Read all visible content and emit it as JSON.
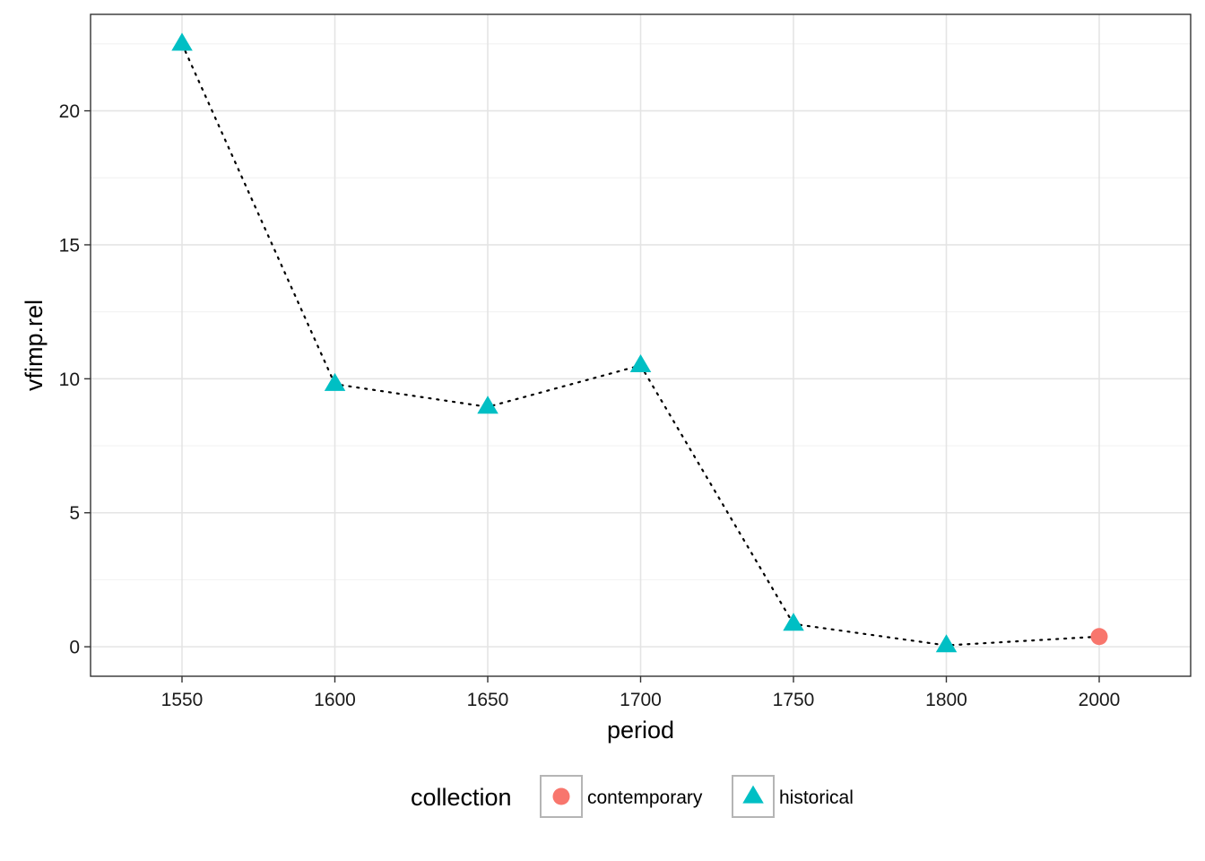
{
  "chart_data": {
    "type": "scatter",
    "categories": [
      "1550",
      "1600",
      "1650",
      "1700",
      "1750",
      "1800",
      "2000"
    ],
    "points": [
      {
        "period": "1550",
        "value": 22.5,
        "collection": "historical"
      },
      {
        "period": "1600",
        "value": 9.8,
        "collection": "historical"
      },
      {
        "period": "1650",
        "value": 8.95,
        "collection": "historical"
      },
      {
        "period": "1700",
        "value": 10.5,
        "collection": "historical"
      },
      {
        "period": "1750",
        "value": 0.85,
        "collection": "historical"
      },
      {
        "period": "1800",
        "value": 0.05,
        "collection": "historical"
      },
      {
        "period": "2000",
        "value": 0.38,
        "collection": "contemporary"
      }
    ],
    "line": {
      "style": "dotted",
      "color": "#000000",
      "connects": "all points in period order"
    },
    "xlabel": "period",
    "ylabel": "vfimp.rel",
    "ylim": [
      -1.1,
      23.6
    ],
    "yticks": [
      0,
      5,
      10,
      15,
      20
    ],
    "grid": true,
    "legend": {
      "title": "collection",
      "position": "bottom",
      "entries": [
        {
          "label": "contemporary",
          "shape": "circle",
          "color": "#F8766D"
        },
        {
          "label": "historical",
          "shape": "triangle",
          "color": "#00BFC4"
        }
      ]
    }
  }
}
